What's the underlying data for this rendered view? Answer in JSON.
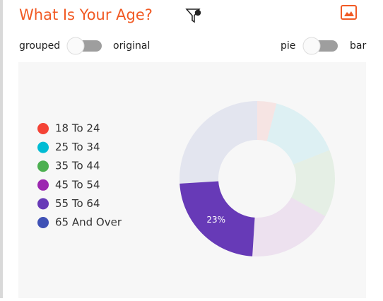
{
  "header": {
    "title": "What Is Your Age?"
  },
  "controls": {
    "left_off": "grouped",
    "left_on": "original",
    "right_off": "pie",
    "right_on": "bar"
  },
  "chart_data": {
    "type": "donut",
    "categories": [
      "18 To 24",
      "25 To 34",
      "35 To 44",
      "45 To 54",
      "55 To 64",
      "65 And Over"
    ],
    "values": [
      4,
      15,
      14,
      18,
      23,
      26
    ],
    "value_labels": [
      null,
      null,
      null,
      null,
      "23%",
      null
    ],
    "colors": [
      "#f44336",
      "#00bcd4",
      "#4caf50",
      "#9c27b0",
      "#673ab7",
      "#3f51b5"
    ],
    "highlight": 4,
    "legend": "left"
  }
}
